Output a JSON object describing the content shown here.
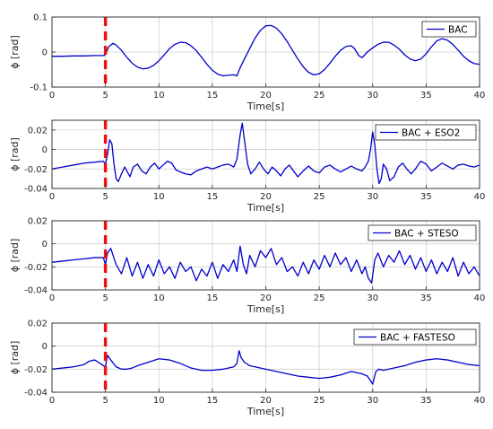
{
  "chart_data": [
    {
      "type": "line",
      "xlabel": "Time[s]",
      "ylabel": "ϕ [rad]",
      "xlim": [
        0,
        40
      ],
      "ylim": [
        -0.1,
        0.1
      ],
      "xticks": [
        0,
        5,
        10,
        15,
        20,
        25,
        30,
        35,
        40
      ],
      "yticks": [
        -0.1,
        0,
        0.1
      ],
      "ytick_labels": [
        "-0.1",
        "0",
        "0.1"
      ],
      "grid": true,
      "legend_position": "top-right",
      "marker_line_x": 5,
      "series": [
        {
          "name": "BAC",
          "color": "#0000cc",
          "x": [
            0,
            1,
            2,
            3,
            4,
            4.9,
            5.1,
            5.3,
            5.7,
            6,
            6.5,
            7,
            7.5,
            8,
            8.5,
            9,
            9.5,
            10,
            10.5,
            11,
            11.5,
            12,
            12.5,
            13,
            13.5,
            14,
            14.5,
            15,
            15.5,
            16,
            16.5,
            17,
            17.3,
            17.6,
            18,
            18.5,
            19,
            19.5,
            20,
            20.5,
            21,
            21.5,
            22,
            22.5,
            23,
            23.5,
            24,
            24.5,
            25,
            25.5,
            26,
            26.5,
            27,
            27.5,
            28,
            28.3,
            28.7,
            29,
            29.2,
            29.5,
            30,
            30.5,
            31,
            31.5,
            32,
            32.5,
            33,
            33.5,
            34,
            34.5,
            35,
            35.5,
            36,
            36.5,
            37,
            37.5,
            38,
            38.5,
            39,
            39.5,
            40
          ],
          "values": [
            -0.012,
            -0.012,
            -0.011,
            -0.011,
            -0.01,
            -0.01,
            0.0,
            0.015,
            0.025,
            0.02,
            0.005,
            -0.015,
            -0.032,
            -0.043,
            -0.048,
            -0.046,
            -0.038,
            -0.025,
            -0.008,
            0.01,
            0.022,
            0.028,
            0.027,
            0.018,
            0.004,
            -0.015,
            -0.035,
            -0.052,
            -0.063,
            -0.068,
            -0.066,
            -0.065,
            -0.068,
            -0.045,
            -0.02,
            0.01,
            0.04,
            0.062,
            0.075,
            0.076,
            0.068,
            0.052,
            0.03,
            0.005,
            -0.02,
            -0.042,
            -0.058,
            -0.065,
            -0.062,
            -0.05,
            -0.032,
            -0.012,
            0.005,
            0.016,
            0.018,
            0.01,
            -0.01,
            -0.016,
            -0.01,
            0.0,
            0.012,
            0.022,
            0.028,
            0.028,
            0.02,
            0.008,
            -0.008,
            -0.02,
            -0.025,
            -0.02,
            -0.005,
            0.015,
            0.032,
            0.038,
            0.034,
            0.022,
            0.005,
            -0.012,
            -0.025,
            -0.033,
            -0.035
          ]
        }
      ]
    },
    {
      "type": "line",
      "xlabel": "Time[s]",
      "ylabel": "ϕ [rad]",
      "xlim": [
        0,
        40
      ],
      "ylim": [
        -0.04,
        0.03
      ],
      "xticks": [
        0,
        5,
        10,
        15,
        20,
        25,
        30,
        35,
        40
      ],
      "yticks": [
        -0.04,
        -0.02,
        0,
        0.02
      ],
      "ytick_labels": [
        "-0.04",
        "-0.02",
        "0",
        "0.02"
      ],
      "grid": true,
      "legend_position": "top-right",
      "marker_line_x": 5,
      "series": [
        {
          "name": "BAC + ESO2",
          "color": "#0000cc",
          "x": [
            0,
            1,
            2,
            3,
            4,
            4.8,
            5.0,
            5.2,
            5.4,
            5.6,
            5.8,
            6.0,
            6.2,
            6.5,
            6.8,
            7.0,
            7.3,
            7.6,
            8.0,
            8.4,
            8.8,
            9.2,
            9.6,
            10.0,
            10.4,
            10.8,
            11.2,
            11.6,
            12.0,
            12.5,
            13,
            13.5,
            14,
            14.5,
            15,
            15.5,
            16,
            16.5,
            17,
            17.3,
            17.6,
            17.8,
            18.0,
            18.3,
            18.6,
            19,
            19.4,
            19.8,
            20.2,
            20.6,
            21,
            21.4,
            21.8,
            22.2,
            22.6,
            23,
            23.5,
            24,
            24.5,
            25,
            25.5,
            26,
            26.5,
            27,
            27.5,
            28,
            28.5,
            29,
            29.3,
            29.6,
            29.8,
            30.0,
            30.2,
            30.4,
            30.6,
            30.8,
            31.0,
            31.3,
            31.6,
            32,
            32.4,
            32.8,
            33.2,
            33.6,
            34,
            34.5,
            35,
            35.5,
            36,
            36.5,
            37,
            37.5,
            38,
            38.5,
            39,
            39.5,
            40
          ],
          "values": [
            -0.02,
            -0.018,
            -0.016,
            -0.014,
            -0.013,
            -0.012,
            -0.015,
            -0.005,
            0.01,
            0.006,
            -0.015,
            -0.03,
            -0.033,
            -0.025,
            -0.018,
            -0.022,
            -0.028,
            -0.018,
            -0.015,
            -0.022,
            -0.025,
            -0.018,
            -0.014,
            -0.02,
            -0.016,
            -0.012,
            -0.014,
            -0.021,
            -0.023,
            -0.025,
            -0.026,
            -0.022,
            -0.02,
            -0.018,
            -0.02,
            -0.018,
            -0.016,
            -0.015,
            -0.018,
            -0.01,
            0.015,
            0.027,
            0.01,
            -0.015,
            -0.025,
            -0.02,
            -0.013,
            -0.02,
            -0.025,
            -0.018,
            -0.022,
            -0.027,
            -0.02,
            -0.016,
            -0.022,
            -0.028,
            -0.022,
            -0.017,
            -0.022,
            -0.024,
            -0.018,
            -0.016,
            -0.02,
            -0.023,
            -0.02,
            -0.017,
            -0.02,
            -0.022,
            -0.018,
            -0.012,
            0.0,
            0.018,
            0.005,
            -0.02,
            -0.035,
            -0.03,
            -0.015,
            -0.02,
            -0.032,
            -0.028,
            -0.018,
            -0.014,
            -0.02,
            -0.025,
            -0.02,
            -0.012,
            -0.015,
            -0.022,
            -0.018,
            -0.014,
            -0.017,
            -0.02,
            -0.016,
            -0.015,
            -0.017,
            -0.018,
            -0.016
          ]
        }
      ]
    },
    {
      "type": "line",
      "xlabel": "Time[s]",
      "ylabel": "ϕ [rad]",
      "xlim": [
        0,
        40
      ],
      "ylim": [
        -0.04,
        0.02
      ],
      "xticks": [
        0,
        5,
        10,
        15,
        20,
        25,
        30,
        35,
        40
      ],
      "yticks": [
        -0.04,
        -0.02,
        0,
        0.02
      ],
      "ytick_labels": [
        "-0.04",
        "-0.02",
        "0",
        "0.02"
      ],
      "grid": true,
      "legend_position": "top-right",
      "marker_line_x": 5,
      "series": [
        {
          "name": "BAC + STESO",
          "color": "#0000cc",
          "x": [
            0,
            1,
            2,
            3,
            4,
            4.8,
            5.0,
            5.2,
            5.5,
            6.0,
            6.5,
            7,
            7.5,
            8,
            8.5,
            9,
            9.5,
            10,
            10.5,
            11,
            11.5,
            12,
            12.5,
            13,
            13.5,
            14,
            14.5,
            15,
            15.5,
            16,
            16.5,
            17,
            17.3,
            17.6,
            17.9,
            18.2,
            18.5,
            19,
            19.5,
            20,
            20.5,
            21,
            21.5,
            22,
            22.5,
            23,
            23.5,
            24,
            24.5,
            25,
            25.5,
            26,
            26.5,
            27,
            27.5,
            28,
            28.5,
            29,
            29.3,
            29.6,
            29.9,
            30.2,
            30.5,
            31,
            31.5,
            32,
            32.5,
            33,
            33.5,
            34,
            34.5,
            35,
            35.5,
            36,
            36.5,
            37,
            37.5,
            38,
            38.5,
            39,
            39.5,
            40
          ],
          "values": [
            -0.016,
            -0.015,
            -0.014,
            -0.013,
            -0.012,
            -0.012,
            -0.018,
            -0.008,
            -0.004,
            -0.018,
            -0.026,
            -0.012,
            -0.028,
            -0.016,
            -0.03,
            -0.018,
            -0.028,
            -0.014,
            -0.026,
            -0.02,
            -0.03,
            -0.016,
            -0.024,
            -0.02,
            -0.032,
            -0.022,
            -0.028,
            -0.016,
            -0.03,
            -0.018,
            -0.024,
            -0.014,
            -0.024,
            -0.002,
            -0.018,
            -0.026,
            -0.01,
            -0.02,
            -0.006,
            -0.012,
            -0.004,
            -0.018,
            -0.012,
            -0.024,
            -0.02,
            -0.028,
            -0.016,
            -0.026,
            -0.014,
            -0.022,
            -0.01,
            -0.02,
            -0.008,
            -0.018,
            -0.012,
            -0.024,
            -0.014,
            -0.026,
            -0.02,
            -0.03,
            -0.034,
            -0.014,
            -0.008,
            -0.02,
            -0.01,
            -0.016,
            -0.006,
            -0.018,
            -0.01,
            -0.022,
            -0.012,
            -0.024,
            -0.014,
            -0.026,
            -0.016,
            -0.024,
            -0.012,
            -0.028,
            -0.016,
            -0.026,
            -0.02,
            -0.028
          ]
        }
      ]
    },
    {
      "type": "line",
      "xlabel": "Time[s]",
      "ylabel": "ϕ [rad]",
      "xlim": [
        0,
        40
      ],
      "ylim": [
        -0.04,
        0.02
      ],
      "xticks": [
        0,
        5,
        10,
        15,
        20,
        25,
        30,
        35,
        40
      ],
      "yticks": [
        -0.04,
        -0.02,
        0,
        0.02
      ],
      "ytick_labels": [
        "-0.04",
        "-0.02",
        "0",
        "0.02"
      ],
      "grid": true,
      "legend_position": "top-right",
      "marker_line_x": 5,
      "series": [
        {
          "name": "BAC + FASTESO",
          "color": "#0000cc",
          "x": [
            0,
            1,
            2,
            3,
            3.5,
            4,
            4.5,
            5.0,
            5.2,
            5.5,
            6,
            6.5,
            7,
            7.5,
            8,
            9,
            10,
            11,
            12,
            13,
            14,
            15,
            16,
            17,
            17.3,
            17.5,
            17.7,
            18,
            18.5,
            19,
            20,
            21,
            22,
            23,
            24,
            25,
            26,
            27,
            28,
            29,
            29.5,
            29.8,
            30.0,
            30.3,
            30.6,
            31,
            32,
            33,
            34,
            35,
            36,
            37,
            38,
            39,
            40
          ],
          "values": [
            -0.02,
            -0.019,
            -0.018,
            -0.016,
            -0.013,
            -0.012,
            -0.015,
            -0.018,
            -0.008,
            -0.012,
            -0.018,
            -0.02,
            -0.02,
            -0.019,
            -0.017,
            -0.014,
            -0.011,
            -0.012,
            -0.015,
            -0.019,
            -0.021,
            -0.021,
            -0.02,
            -0.018,
            -0.015,
            -0.004,
            -0.01,
            -0.014,
            -0.017,
            -0.018,
            -0.02,
            -0.022,
            -0.024,
            -0.026,
            -0.027,
            -0.028,
            -0.027,
            -0.025,
            -0.022,
            -0.024,
            -0.026,
            -0.03,
            -0.033,
            -0.022,
            -0.02,
            -0.021,
            -0.019,
            -0.017,
            -0.014,
            -0.012,
            -0.011,
            -0.012,
            -0.014,
            -0.016,
            -0.017
          ]
        }
      ]
    }
  ]
}
